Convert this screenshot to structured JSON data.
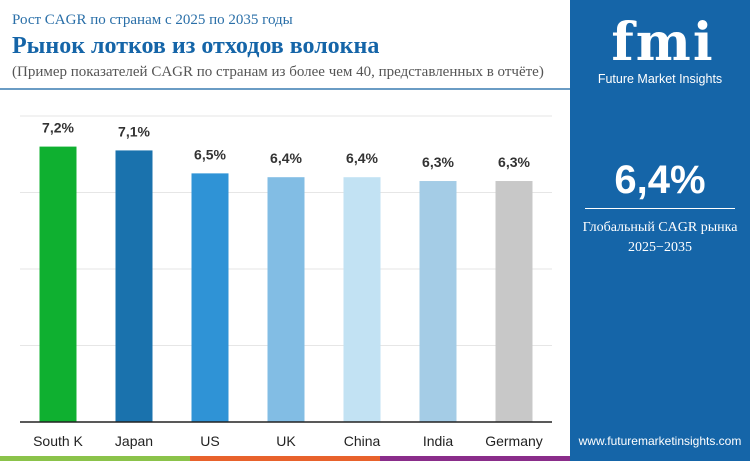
{
  "header": {
    "subtitle": "Рост CAGR по странам с 2025 по 2035 годы",
    "title": "Рынок лотков из отходов волокна",
    "note": "(Пример показателей CAGR по странам из более чем 40, представленных в отчёте)"
  },
  "panel": {
    "logo_text": "fmi",
    "logo_name": "Future Market Insights",
    "global_value": "6,4%",
    "global_label_1": "Глобальный CAGR рынка",
    "global_label_2": "2025−2035",
    "url": "www.futuremarketinsights.com",
    "bg_color": "#1565a8"
  },
  "chart_data": {
    "type": "bar",
    "title": "",
    "xlabel": "",
    "ylabel": "",
    "ylim": [
      0,
      8
    ],
    "grid": true,
    "categories": [
      "South K",
      "Japan",
      "US",
      "UK",
      "China",
      "India",
      "Germany"
    ],
    "values": [
      7.2,
      7.1,
      6.5,
      6.4,
      6.4,
      6.3,
      6.3
    ],
    "labels": [
      "7,2%",
      "7,1%",
      "6,5%",
      "6,4%",
      "6,4%",
      "6,3%",
      "6,3%"
    ],
    "colors": [
      "#0fb030",
      "#1a72ad",
      "#2f93d6",
      "#82bde4",
      "#c2e2f3",
      "#a4cce6",
      "#c8c8c8"
    ]
  },
  "bottom_strip_colors": [
    "#8bc34a",
    "#e8622c",
    "#8a2d8a"
  ]
}
